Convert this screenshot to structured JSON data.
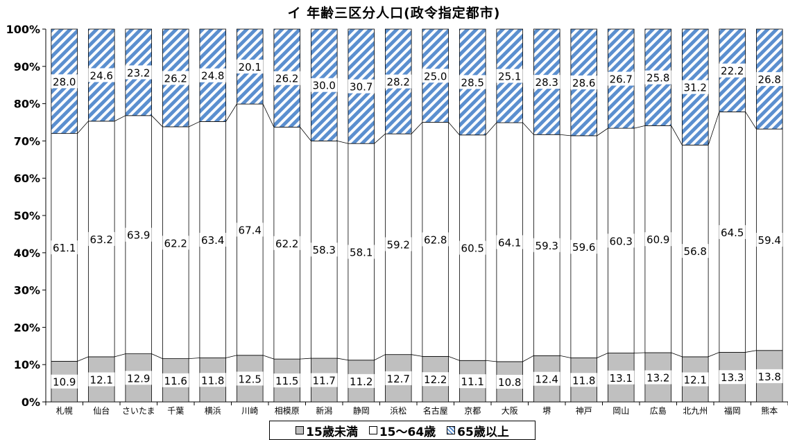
{
  "chart_data": {
    "type": "bar",
    "stacked": true,
    "title": "イ 年齢三区分人口(政令指定都市)",
    "xlabel": "",
    "ylabel": "",
    "ylim": [
      0,
      100
    ],
    "yticks": [
      "0%",
      "10%",
      "20%",
      "30%",
      "40%",
      "50%",
      "60%",
      "70%",
      "80%",
      "90%",
      "100%"
    ],
    "grid": false,
    "legend_position": "bottom",
    "categories": [
      "札幌",
      "仙台",
      "さいたま",
      "千葉",
      "横浜",
      "川崎",
      "相模原",
      "新潟",
      "静岡",
      "浜松",
      "名古屋",
      "京都",
      "大阪",
      "堺",
      "神戸",
      "岡山",
      "広島",
      "北九州",
      "福岡",
      "熊本"
    ],
    "series": [
      {
        "name": "15歳未満",
        "color": "#c0c0c0",
        "pattern": "solid",
        "values": [
          10.9,
          12.1,
          12.9,
          11.6,
          11.8,
          12.5,
          11.5,
          11.7,
          11.2,
          12.7,
          12.2,
          11.1,
          10.8,
          12.4,
          11.8,
          13.1,
          13.2,
          12.1,
          13.3,
          13.8
        ]
      },
      {
        "name": "15～64歳",
        "color": "#ffffff",
        "pattern": "solid",
        "values": [
          61.1,
          63.2,
          63.9,
          62.2,
          63.4,
          67.4,
          62.2,
          58.3,
          58.1,
          59.2,
          62.8,
          60.5,
          64.1,
          59.3,
          59.6,
          60.3,
          60.9,
          56.8,
          64.5,
          59.4
        ]
      },
      {
        "name": "65歳以上",
        "color": "#5b8fcf",
        "pattern": "diagonal-stripe",
        "values": [
          28.0,
          24.6,
          23.2,
          26.2,
          24.8,
          20.1,
          26.2,
          30.0,
          30.7,
          28.2,
          25.0,
          28.5,
          25.1,
          28.3,
          28.6,
          26.7,
          25.8,
          31.2,
          22.2,
          26.8
        ]
      }
    ]
  }
}
